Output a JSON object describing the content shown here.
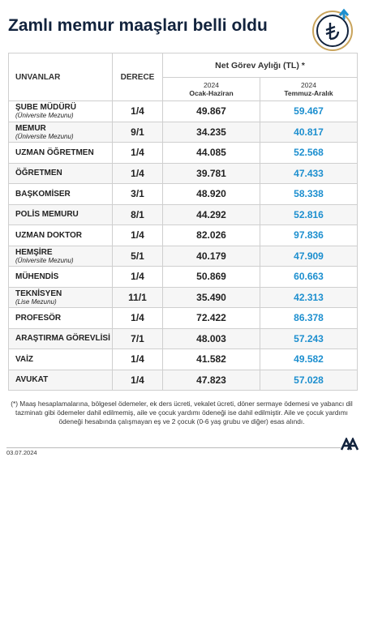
{
  "header": {
    "title": "Zamlı memur maaşları belli oldu"
  },
  "table": {
    "columns": {
      "title": "UNVANLAR",
      "grade": "DERECE",
      "salary": "Net Görev Aylığı (TL) *",
      "periods": [
        {
          "year": "2024",
          "label": "Ocak-Haziran"
        },
        {
          "year": "2024",
          "label": "Temmuz-Aralık"
        }
      ]
    },
    "rows": [
      {
        "title": "ŞUBE MÜDÜRÜ",
        "note": "(Üniversite Mezunu)",
        "grade": "1/4",
        "first": "49.867",
        "second": "59.467"
      },
      {
        "title": "MEMUR",
        "note": "(Üniversite Mezunu)",
        "grade": "9/1",
        "first": "34.235",
        "second": "40.817"
      },
      {
        "title": "UZMAN ÖĞRETMEN",
        "grade": "1/4",
        "first": "44.085",
        "second": "52.568"
      },
      {
        "title": "ÖĞRETMEN",
        "grade": "1/4",
        "first": "39.781",
        "second": "47.433"
      },
      {
        "title": "BAŞKOMİSER",
        "grade": "3/1",
        "first": "48.920",
        "second": "58.338"
      },
      {
        "title": "POLİS MEMURU",
        "grade": "8/1",
        "first": "44.292",
        "second": "52.816"
      },
      {
        "title": "UZMAN DOKTOR",
        "grade": "1/4",
        "first": "82.026",
        "second": "97.836"
      },
      {
        "title": "HEMŞİRE",
        "note": "(Üniversite Mezunu)",
        "grade": "5/1",
        "first": "40.179",
        "second": "47.909"
      },
      {
        "title": "MÜHENDİS",
        "grade": "1/4",
        "first": "50.869",
        "second": "60.663"
      },
      {
        "title": "TEKNİSYEN",
        "note": "(Lise Mezunu)",
        "grade": "11/1",
        "first": "35.490",
        "second": "42.313"
      },
      {
        "title": "PROFESÖR",
        "grade": "1/4",
        "first": "72.422",
        "second": "86.378"
      },
      {
        "title": "ARAŞTIRMA GÖREVLİSİ",
        "grade": "7/1",
        "first": "48.003",
        "second": "57.243"
      },
      {
        "title": "VAİZ",
        "grade": "1/4",
        "first": "41.582",
        "second": "49.582"
      },
      {
        "title": "AVUKAT",
        "grade": "1/4",
        "first": "47.823",
        "second": "57.028"
      }
    ]
  },
  "footnote": "(*) Maaş hesaplamalarına, bölgesel ödemeler, ek ders ücreti, vekalet ücreti, döner sermaye ödemesi ve yabancı dil tazminatı gibi ödemeler dahil edilmemiş, aile ve çocuk yardımı ödeneği ise dahil edilmiştir. Aile ve çocuk yardımı ödeneği hesabında çalışmayan eş ve 2 çocuk (0-6 yaş grubu ve diğer) esas alındı.",
  "footer": {
    "date": "03.07.2024"
  }
}
